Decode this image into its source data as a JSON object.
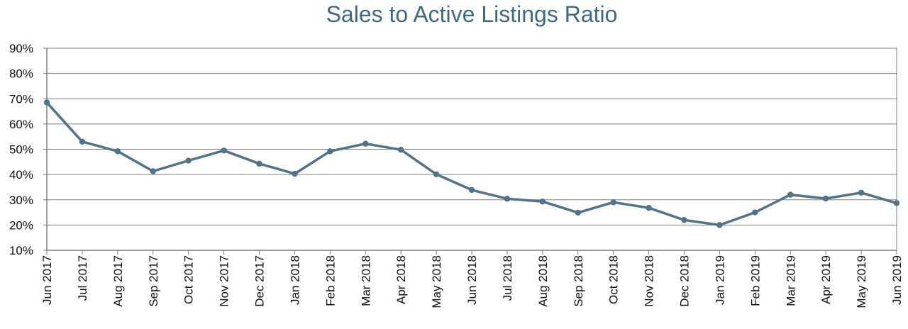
{
  "chart_data": {
    "type": "line",
    "title": "Sales to Active Listings Ratio",
    "xlabel": "",
    "ylabel": "",
    "ylim": [
      0.1,
      0.9
    ],
    "yticks": [
      "90%",
      "80%",
      "70%",
      "60%",
      "50%",
      "40%",
      "30%",
      "20%",
      "10%"
    ],
    "grid": true,
    "legend": "none",
    "categories": [
      "Jun 2017",
      "Jul 2017",
      "Aug 2017",
      "Sep 2017",
      "Oct 2017",
      "Nov 2017",
      "Dec 2017",
      "Jan 2018",
      "Feb 2018",
      "Mar 2018",
      "Apr 2018",
      "May 2018",
      "Jun 2018",
      "Jul 2018",
      "Aug 2018",
      "Sep 2018",
      "Oct 2018",
      "Nov 2018",
      "Dec 2018",
      "Jan 2019",
      "Feb 2019",
      "Mar 2019",
      "Apr 2019",
      "May 2019",
      "Jun 2019"
    ],
    "series": [
      {
        "values": [
          0.685,
          0.53,
          0.492,
          0.413,
          0.455,
          0.495,
          0.443,
          0.403,
          0.492,
          0.522,
          0.498,
          0.401,
          0.339,
          0.304,
          0.293,
          0.249,
          0.29,
          0.268,
          0.22,
          0.2,
          0.25,
          0.32,
          0.305,
          0.328,
          0.287
        ],
        "color": "#4f7489"
      }
    ],
    "colors": {
      "line": "#4f7489",
      "title": "#3d6a82",
      "grid": "#7f7f7f",
      "axis": "#7f7f7f"
    }
  }
}
